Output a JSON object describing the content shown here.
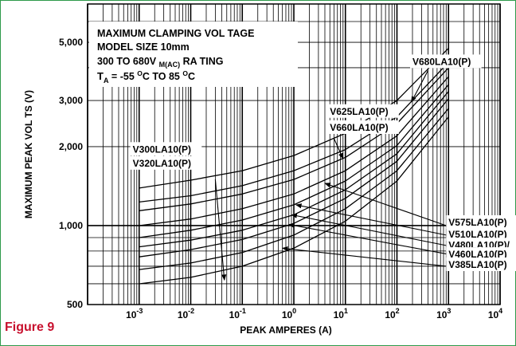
{
  "figure_label": "Figure 9",
  "chart_data": {
    "type": "line",
    "xscale": "log",
    "yscale": "log",
    "xlim": [
      0.0001,
      10000
    ],
    "ylim": [
      500,
      7000
    ],
    "grid": true,
    "xlabel": "PEAK AMPERES (A)",
    "ylabel": "MAXIMUM PEAK    VOL TS (V)",
    "xticks": [
      {
        "v": 0.001,
        "base": "10",
        "exp": "-3"
      },
      {
        "v": 0.01,
        "base": "10",
        "exp": "-2"
      },
      {
        "v": 0.1,
        "base": "10",
        "exp": "-1"
      },
      {
        "v": 1,
        "base": "10",
        "exp": "0"
      },
      {
        "v": 10,
        "base": "10",
        "exp": "1"
      },
      {
        "v": 100,
        "base": "10",
        "exp": "2"
      },
      {
        "v": 1000,
        "base": "10",
        "exp": "3"
      },
      {
        "v": 10000,
        "base": "10",
        "exp": "4"
      }
    ],
    "yticks": [
      {
        "v": 5000,
        "label": "5,000"
      },
      {
        "v": 3000,
        "label": "3,000"
      },
      {
        "v": 2000,
        "label": "2,000"
      },
      {
        "v": 1000,
        "label": "1,000"
      },
      {
        "v": 500,
        "label": "500"
      }
    ],
    "info_box": {
      "line1": "MAXIMUM CLAMPING     VOL TAGE",
      "line2": "MODEL SIZE 10mm",
      "line3": "300  TO  680V",
      "line3_sub": "M(AC)",
      "line3_end": "RA TING",
      "line4_prefix": "T",
      "line4_sub": "A",
      "line4_mid": " = -55 ",
      "line4_sup1": "O",
      "line4_mid2": "C TO  85 ",
      "line4_sup2": "O",
      "line4_end": "C"
    },
    "x": [
      0.001,
      0.01,
      0.1,
      1,
      10,
      100,
      1000
    ],
    "series": [
      {
        "values": [
          1390,
          1490,
          1620,
          1850,
          2250,
          3000,
          4750
        ]
      },
      {
        "values": [
          1230,
          1300,
          1420,
          1620,
          1950,
          2600,
          4200
        ]
      },
      {
        "values": [
          1140,
          1210,
          1320,
          1500,
          1820,
          2450,
          4000
        ]
      },
      {
        "values": [
          1000,
          1060,
          1160,
          1320,
          1620,
          2200,
          3700
        ]
      },
      {
        "values": [
          900,
          960,
          1050,
          1200,
          1480,
          2020,
          3450
        ]
      },
      {
        "values": [
          830,
          880,
          960,
          1100,
          1370,
          1880,
          3250
        ]
      },
      {
        "values": [
          760,
          810,
          885,
          1020,
          1270,
          1760,
          3050
        ]
      },
      {
        "values": [
          680,
          720,
          790,
          920,
          1160,
          1620,
          2800
        ]
      },
      {
        "values": [
          600,
          635,
          700,
          820,
          1040,
          1480,
          2600
        ]
      }
    ],
    "annotations": [
      {
        "text": "V680LA10(P)",
        "tx": 200,
        "ty": 4100
      },
      {
        "text": "V625LA10(P)",
        "tx": 5,
        "ty": 2650
      },
      {
        "text": "V660LA10(P)",
        "tx": 5,
        "ty": 2300
      },
      {
        "text": "V300LA10(P)",
        "tx": 0.00075,
        "ty": 1900
      },
      {
        "text": "V320LA10(P)",
        "tx": 0.00075,
        "ty": 1680
      },
      {
        "text": "V575LA10(P)",
        "tx": 1000,
        "ty": 1000
      },
      {
        "text": "V510LA10(P)",
        "tx": 1000,
        "ty": 900
      },
      {
        "text": "V480LA10(P)/",
        "tx": 1000,
        "ty": 820
      },
      {
        "text": "V460LA10(P)",
        "tx": 1000,
        "ty": 755
      },
      {
        "text": "V385LA10(P)",
        "tx": 1000,
        "ty": 690
      }
    ],
    "arrows": [
      {
        "from": [
          400,
          3900
        ],
        "to": [
          190,
          2960
        ]
      },
      {
        "from": [
          6,
          2150
        ],
        "to": [
          9,
          1800
        ]
      },
      {
        "from": [
          0.03,
          1500
        ],
        "to": [
          0.045,
          620
        ]
      },
      {
        "from": [
          900,
          1000
        ],
        "to": [
          4,
          1450
        ]
      },
      {
        "from": [
          900,
          920
        ],
        "to": [
          1.1,
          1200
        ]
      },
      {
        "from": [
          900,
          840
        ],
        "to": [
          0.9,
          1100
        ]
      },
      {
        "from": [
          900,
          780
        ],
        "to": [
          0.8,
          1010
        ]
      },
      {
        "from": [
          900,
          700
        ],
        "to": [
          0.6,
          820
        ]
      }
    ]
  }
}
